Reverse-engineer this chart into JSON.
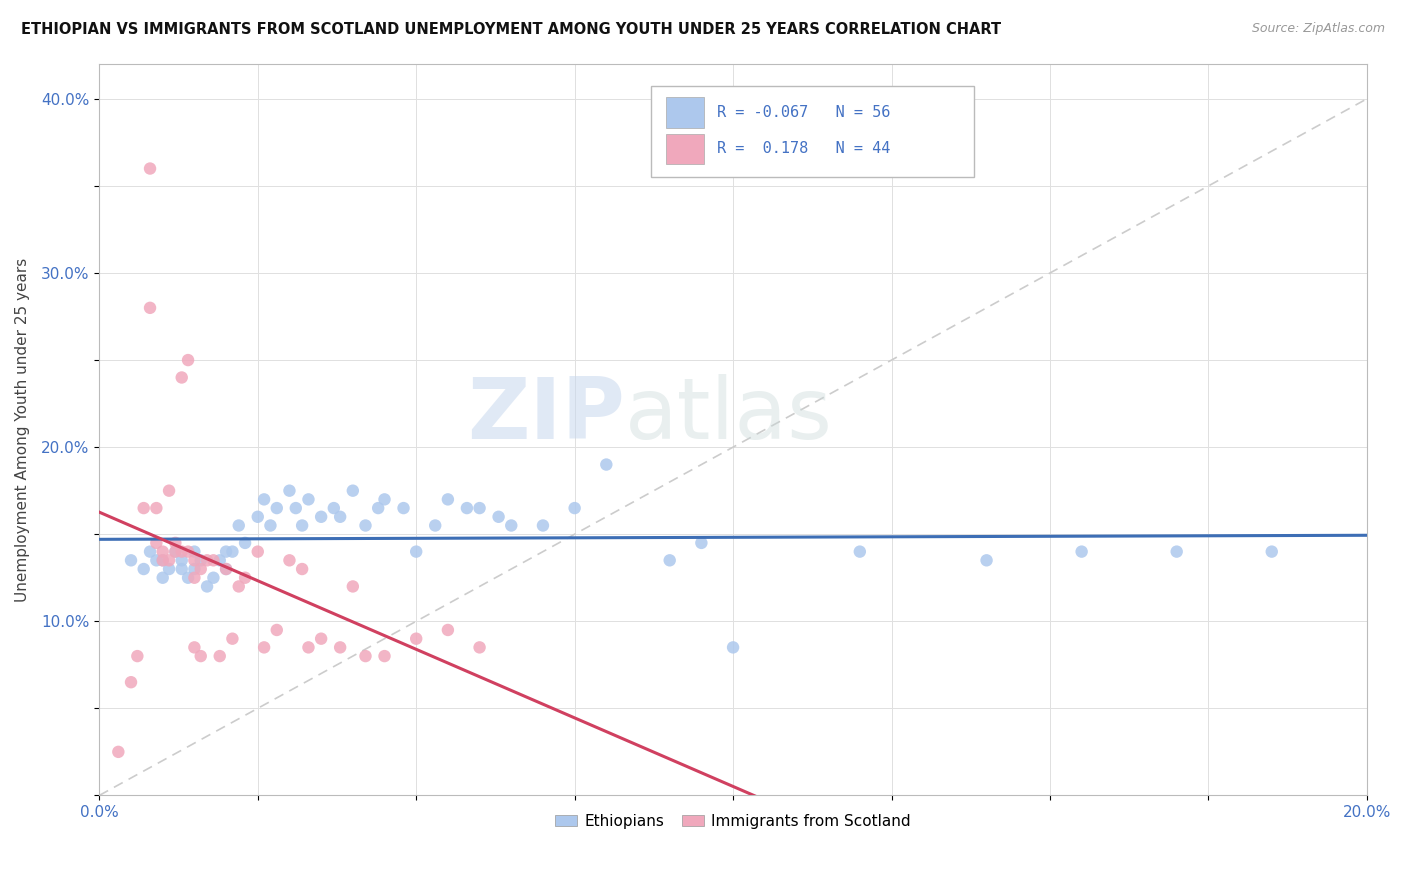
{
  "title": "ETHIOPIAN VS IMMIGRANTS FROM SCOTLAND UNEMPLOYMENT AMONG YOUTH UNDER 25 YEARS CORRELATION CHART",
  "source": "Source: ZipAtlas.com",
  "ylabel": "Unemployment Among Youth under 25 years",
  "xlim": [
    0.0,
    0.2
  ],
  "ylim": [
    0.0,
    0.42
  ],
  "x_ticks": [
    0.0,
    0.025,
    0.05,
    0.075,
    0.1,
    0.125,
    0.15,
    0.175,
    0.2
  ],
  "x_tick_labels": [
    "0.0%",
    "",
    "",
    "",
    "",
    "",
    "",
    "",
    "20.0%"
  ],
  "y_ticks": [
    0.0,
    0.05,
    0.1,
    0.15,
    0.2,
    0.25,
    0.3,
    0.35,
    0.4
  ],
  "y_tick_labels": [
    "",
    "",
    "10.0%",
    "",
    "20.0%",
    "",
    "30.0%",
    "",
    "40.0%"
  ],
  "ethiopians_color": "#adc8ed",
  "scotland_color": "#f0a8bc",
  "trendline_ethiopians_color": "#3d6eb5",
  "trendline_scotland_color": "#d04060",
  "diagonal_color": "#cccccc",
  "R_ethiopians": -0.067,
  "N_ethiopians": 56,
  "R_scotland": 0.178,
  "N_scotland": 44,
  "ethiopians_x": [
    0.005,
    0.007,
    0.008,
    0.009,
    0.01,
    0.01,
    0.011,
    0.012,
    0.013,
    0.013,
    0.014,
    0.015,
    0.015,
    0.016,
    0.017,
    0.018,
    0.019,
    0.02,
    0.02,
    0.021,
    0.022,
    0.023,
    0.025,
    0.026,
    0.027,
    0.028,
    0.03,
    0.031,
    0.032,
    0.033,
    0.035,
    0.037,
    0.038,
    0.04,
    0.042,
    0.044,
    0.045,
    0.048,
    0.05,
    0.053,
    0.055,
    0.058,
    0.06,
    0.063,
    0.065,
    0.07,
    0.075,
    0.08,
    0.09,
    0.095,
    0.1,
    0.12,
    0.14,
    0.155,
    0.17,
    0.185
  ],
  "ethiopians_y": [
    0.135,
    0.13,
    0.14,
    0.135,
    0.135,
    0.125,
    0.13,
    0.14,
    0.135,
    0.13,
    0.125,
    0.14,
    0.13,
    0.135,
    0.12,
    0.125,
    0.135,
    0.14,
    0.13,
    0.14,
    0.155,
    0.145,
    0.16,
    0.17,
    0.155,
    0.165,
    0.175,
    0.165,
    0.155,
    0.17,
    0.16,
    0.165,
    0.16,
    0.175,
    0.155,
    0.165,
    0.17,
    0.165,
    0.14,
    0.155,
    0.17,
    0.165,
    0.165,
    0.16,
    0.155,
    0.155,
    0.165,
    0.19,
    0.135,
    0.145,
    0.085,
    0.14,
    0.135,
    0.14,
    0.14,
    0.14
  ],
  "scotland_x": [
    0.003,
    0.005,
    0.006,
    0.007,
    0.008,
    0.008,
    0.009,
    0.009,
    0.01,
    0.01,
    0.011,
    0.011,
    0.012,
    0.012,
    0.013,
    0.013,
    0.014,
    0.014,
    0.015,
    0.015,
    0.015,
    0.016,
    0.016,
    0.017,
    0.018,
    0.019,
    0.02,
    0.021,
    0.022,
    0.023,
    0.025,
    0.026,
    0.028,
    0.03,
    0.032,
    0.033,
    0.035,
    0.038,
    0.04,
    0.042,
    0.045,
    0.05,
    0.055,
    0.06
  ],
  "scotland_y": [
    0.025,
    0.065,
    0.08,
    0.165,
    0.28,
    0.36,
    0.145,
    0.165,
    0.14,
    0.135,
    0.175,
    0.135,
    0.145,
    0.14,
    0.14,
    0.24,
    0.25,
    0.14,
    0.135,
    0.125,
    0.085,
    0.13,
    0.08,
    0.135,
    0.135,
    0.08,
    0.13,
    0.09,
    0.12,
    0.125,
    0.14,
    0.085,
    0.095,
    0.135,
    0.13,
    0.085,
    0.09,
    0.085,
    0.12,
    0.08,
    0.08,
    0.09,
    0.095,
    0.085
  ],
  "watermark_zip": "ZIP",
  "watermark_atlas": "atlas",
  "background_color": "#ffffff",
  "grid_color": "#e0e0e0"
}
